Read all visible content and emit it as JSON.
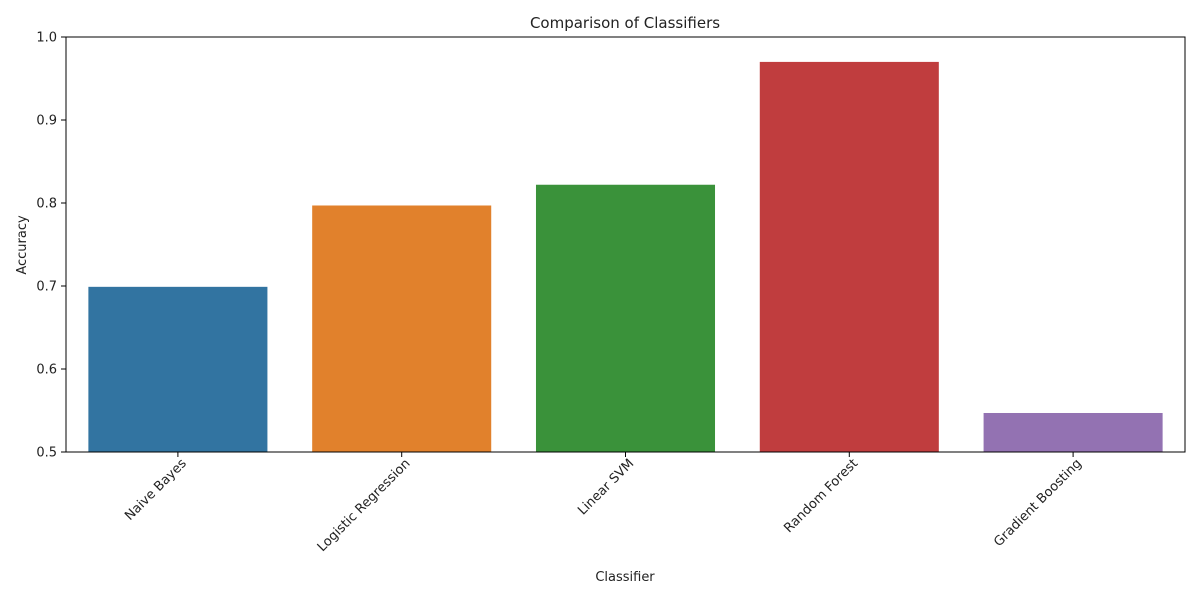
{
  "chart_data": {
    "type": "bar",
    "title": "Comparison of Classifiers",
    "xlabel": "Classifier",
    "ylabel": "Accuracy",
    "categories": [
      "Naive Bayes",
      "Logistic Regression",
      "Linear SVM",
      "Random Forest",
      "Gradient Boosting"
    ],
    "values": [
      0.699,
      0.797,
      0.822,
      0.97,
      0.547
    ],
    "colors": [
      "#3274a1",
      "#e1812c",
      "#3a923a",
      "#c03d3e",
      "#9372b2"
    ],
    "ylim": [
      0.5,
      1.0
    ],
    "yticks": [
      0.5,
      0.6,
      0.7,
      0.8,
      0.9,
      1.0
    ],
    "ytick_labels": [
      "0.5",
      "0.6",
      "0.7",
      "0.8",
      "0.9",
      "1.0"
    ],
    "grid": false,
    "xtick_rotation_deg": 45
  }
}
